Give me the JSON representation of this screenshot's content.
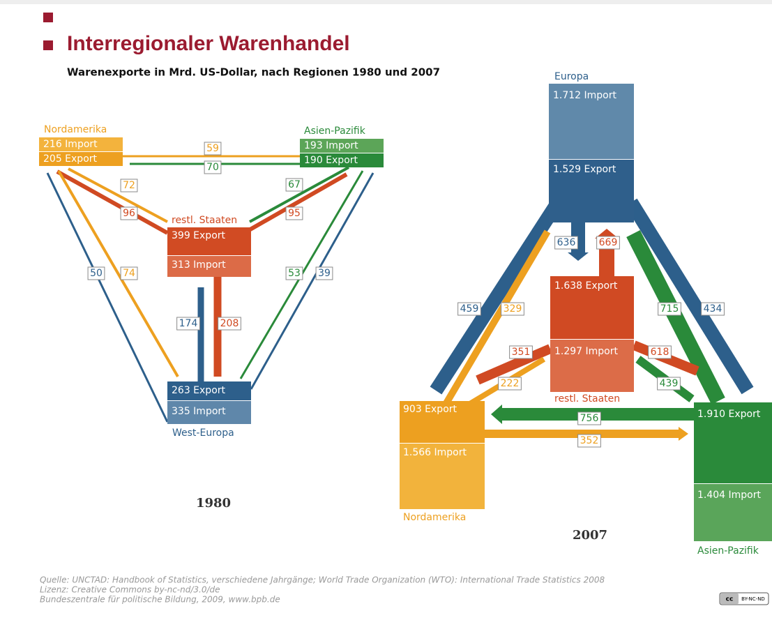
{
  "header": {
    "title": "Interregionaler Warenhandel",
    "subtitle": "Warenexporte in Mrd. US-Dollar, nach Regionen 1980 und 2007"
  },
  "diagrams": [
    {
      "year": "1980",
      "regions": [
        {
          "name": "Nordamerika",
          "import": "216 Import",
          "export": "205 Export"
        },
        {
          "name": "Asien-Pazifik",
          "import": "193 Import",
          "export": "190 Export"
        },
        {
          "name": "restl. Staaten",
          "import": "313 Import",
          "export": "399 Export"
        },
        {
          "name": "West-Europa",
          "import": "335 Import",
          "export": "263 Export"
        }
      ],
      "flows": [
        59,
        70,
        72,
        96,
        67,
        95,
        50,
        74,
        53,
        39,
        174,
        208
      ]
    },
    {
      "year": "2007",
      "regions": [
        {
          "name": "Europa",
          "import": "1.712 Import",
          "export": "1.529 Export"
        },
        {
          "name": "restl. Staaten",
          "import": "1.297 Import",
          "export": "1.638 Export"
        },
        {
          "name": "Nordamerika",
          "import": "1.566 Import",
          "export": "903 Export"
        },
        {
          "name": "Asien-Pazifik",
          "import": "1.404 Import",
          "export": "1.910 Export"
        }
      ],
      "flows": [
        636,
        669,
        459,
        329,
        715,
        434,
        351,
        618,
        222,
        439,
        756,
        352
      ]
    }
  ],
  "footer": {
    "source": "Quelle: UNCTAD: Handbook of Statistics, verschiedene Jahrgänge; World Trade Organization (WTO): International Trade Statistics 2008",
    "license": "Lizenz: Creative Commons by-nc-nd/3.0/de",
    "publisher": "Bundeszentrale für politische Bildung, 2009, www.bpb.de",
    "badge_cc": "cc",
    "badge_terms": "BY-NC-ND"
  }
}
